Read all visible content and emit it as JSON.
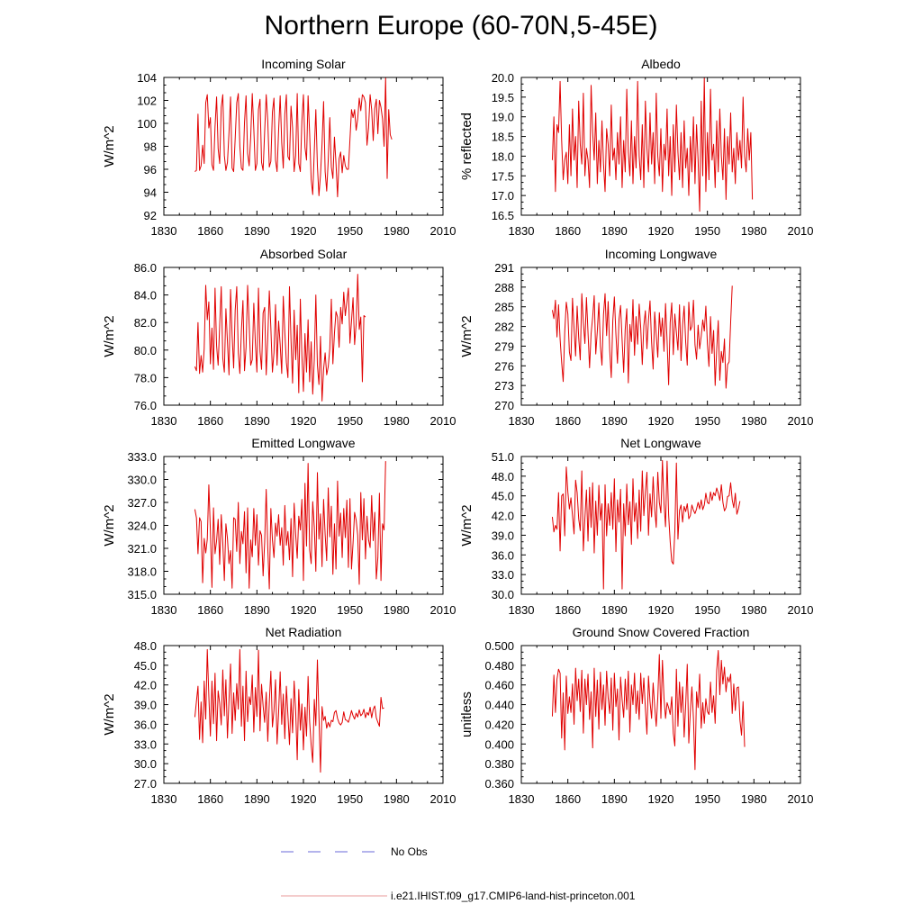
{
  "figure": {
    "title": "Northern Europe (60-70N,5-45E)"
  },
  "legend": {
    "entries": [
      {
        "label": "No Obs",
        "color": "#6a6ad8",
        "style": "dashed"
      },
      {
        "label": "i.e21.IHIST.f09_g17.CMIP6-land-hist-princeton.001",
        "color": "#e89a9a",
        "style": "solid"
      }
    ]
  },
  "colors": {
    "series": "#e00000",
    "axis": "#000000"
  },
  "chart_data": [
    {
      "type": "line",
      "title": "Incoming Solar",
      "ylabel": "W/m^2",
      "xlim": [
        1830,
        2010
      ],
      "xticks": [
        1830,
        1860,
        1890,
        1920,
        1950,
        1980,
        2010
      ],
      "ylim": [
        92,
        104
      ],
      "yticks": [
        "92",
        "94",
        "96",
        "98",
        "100",
        "102",
        "104"
      ],
      "x_start": 1850,
      "y": [
        95.8,
        95.9,
        100.8,
        95.9,
        96.3,
        98.1,
        96.5,
        101.8,
        102.5,
        99.6,
        100.5,
        96.4,
        95.9,
        99.7,
        102.3,
        97.8,
        96.5,
        101.4,
        102.5,
        97.2,
        95.9,
        96.6,
        99.2,
        102.3,
        96.1,
        95.8,
        98.7,
        101.8,
        102.6,
        98.0,
        96.1,
        95.9,
        100.1,
        102.4,
        97.4,
        96.3,
        98.8,
        102.6,
        99.5,
        95.9,
        96.5,
        101.2,
        102.1,
        96.6,
        95.9,
        99.3,
        102.5,
        100.2,
        96.2,
        96.7,
        101.0,
        102.2,
        96.8,
        95.8,
        99.4,
        102.4,
        98.3,
        96.1,
        100.8,
        102.5,
        97.1,
        96.8,
        101.5,
        99.6,
        95.8,
        97.2,
        102.6,
        96.5,
        95.8,
        100.2,
        102.5,
        97.9,
        96.8,
        102.4,
        99.1,
        95.1,
        93.8,
        97.6,
        101.2,
        96.3,
        93.7,
        95.5,
        98.2,
        101.9,
        95.8,
        94.1,
        96.8,
        100.5,
        96.2,
        95.2,
        98.8,
        96.5,
        93.6,
        96.9,
        97.5,
        95.7,
        97.2,
        96.3,
        96.0,
        96.0,
        98.6,
        101.2,
        100.5,
        101.2,
        99.4,
        100.4,
        102.2,
        101.1,
        102.5,
        102.3,
        101.8,
        98.1,
        99.6,
        102.5,
        101.2,
        98.5,
        101.3,
        102.1,
        99.1,
        102.0,
        101.4,
        100.4,
        98.0,
        104.0,
        95.2,
        101.2,
        99.0,
        98.6
      ]
    },
    {
      "type": "line",
      "title": "Albedo",
      "ylabel": "% reflected",
      "xlim": [
        1830,
        2010
      ],
      "xticks": [
        1830,
        1860,
        1890,
        1920,
        1950,
        1980,
        2010
      ],
      "ylim": [
        16.5,
        20.0
      ],
      "yticks": [
        "16.5",
        "17.0",
        "17.5",
        "18.0",
        "18.5",
        "19.0",
        "19.5",
        "20.0"
      ],
      "x_start": 1850,
      "y": [
        17.9,
        19.0,
        17.1,
        18.8,
        18.6,
        19.9,
        18.4,
        17.4,
        17.9,
        18.1,
        17.3,
        18.8,
        17.5,
        19.2,
        17.9,
        18.5,
        17.2,
        19.4,
        18.3,
        17.8,
        19.6,
        17.5,
        18.2,
        17.9,
        17.2,
        19.8,
        18.6,
        17.9,
        19.1,
        17.3,
        18.4,
        17.6,
        18.9,
        17.8,
        17.1,
        18.7,
        18.3,
        17.5,
        19.3,
        17.9,
        18.2,
        17.4,
        18.6,
        17.8,
        19.0,
        17.2,
        18.4,
        17.6,
        19.7,
        18.1,
        17.5,
        18.9,
        17.3,
        18.5,
        17.7,
        19.9,
        18.0,
        17.4,
        18.8,
        17.2,
        19.4,
        18.2,
        17.6,
        19.1,
        17.8,
        18.6,
        17.3,
        19.6,
        18.0,
        17.5,
        18.7,
        17.1,
        18.3,
        17.9,
        19.2,
        17.5,
        18.5,
        17.0,
        18.8,
        17.6,
        19.3,
        18.1,
        17.4,
        18.6,
        17.2,
        18.9,
        17.7,
        18.2,
        17.0,
        18.5,
        17.6,
        19.0,
        17.3,
        18.8,
        17.9,
        16.6,
        19.4,
        17.5,
        20.0,
        17.1,
        18.6,
        17.4,
        19.7,
        17.9,
        18.3,
        17.2,
        18.9,
        17.6,
        19.2,
        18.0,
        17.4,
        18.7,
        16.9,
        18.5,
        17.8,
        19.1,
        17.6,
        18.2,
        17.3,
        18.6,
        17.9,
        18.4,
        17.7,
        19.5,
        18.0,
        17.6,
        18.7,
        17.9,
        18.6,
        16.9
      ]
    },
    {
      "type": "line",
      "title": "Absorbed Solar",
      "ylabel": "W/m^2",
      "xlim": [
        1830,
        2010
      ],
      "xticks": [
        1830,
        1860,
        1890,
        1920,
        1950,
        1980,
        2010
      ],
      "ylim": [
        76.0,
        86.0
      ],
      "yticks": [
        "76.0",
        "78.0",
        "80.0",
        "82.0",
        "84.0",
        "86.0"
      ],
      "x_start": 1850,
      "y": [
        78.8,
        78.5,
        82.0,
        78.3,
        79.6,
        78.4,
        80.1,
        84.7,
        82.2,
        83.5,
        79.0,
        81.6,
        78.6,
        84.5,
        80.3,
        78.9,
        81.8,
        84.6,
        79.4,
        78.4,
        83.0,
        80.6,
        78.2,
        84.4,
        81.1,
        78.7,
        82.9,
        84.6,
        79.8,
        78.3,
        81.4,
        83.6,
        78.5,
        80.2,
        84.7,
        81.9,
        78.9,
        79.3,
        83.4,
        80.5,
        78.4,
        84.5,
        79.9,
        78.6,
        82.7,
        83.1,
        78.2,
        80.9,
        84.3,
        81.6,
        78.4,
        79.8,
        83.3,
        78.9,
        82.1,
        80.4,
        78.3,
        83.9,
        81.3,
        79.1,
        78.0,
        84.6,
        80.7,
        77.6,
        82.9,
        79.3,
        81.8,
        76.9,
        83.7,
        79.6,
        77.0,
        81.2,
        78.4,
        82.2,
        77.7,
        80.6,
        76.8,
        79.3,
        84.0,
        78.9,
        77.5,
        81.0,
        76.3,
        78.6,
        79.8,
        78.2,
        78.8,
        80.1,
        83.7,
        79.0,
        81.2,
        82.8,
        82.4,
        80.2,
        83.1,
        81.9,
        84.2,
        82.5,
        83.5,
        84.5,
        80.5,
        82.1,
        83.8,
        80.4,
        81.9,
        85.5,
        81.5,
        82.4,
        77.7,
        82.5,
        82.4
      ]
    },
    {
      "type": "line",
      "title": "Incoming Longwave",
      "ylabel": "W/m^2",
      "xlim": [
        1830,
        2010
      ],
      "xticks": [
        1830,
        1860,
        1890,
        1920,
        1950,
        1980,
        2010
      ],
      "ylim": [
        270,
        291
      ],
      "yticks": [
        "270",
        "273",
        "276",
        "279",
        "282",
        "285",
        "288",
        "291"
      ],
      "x_start": 1850,
      "y": [
        284.5,
        283.2,
        286.0,
        280.4,
        285.3,
        280.1,
        276.5,
        273.6,
        281.2,
        285.7,
        283.9,
        278.1,
        276.8,
        286.3,
        281.7,
        277.5,
        285.1,
        280.3,
        276.9,
        287.0,
        282.6,
        279.4,
        286.4,
        281.1,
        275.7,
        280.9,
        283.4,
        286.7,
        277.8,
        281.3,
        285.6,
        279.0,
        276.1,
        283.8,
        287.0,
        280.6,
        285.8,
        278.3,
        274.2,
        282.9,
        286.5,
        280.8,
        276.4,
        283.1,
        285.2,
        279.9,
        275.0,
        281.6,
        284.7,
        273.4,
        282.3,
        279.7,
        286.1,
        277.6,
        283.5,
        279.3,
        285.4,
        281.8,
        276.2,
        282.1,
        284.4,
        278.6,
        283.0,
        285.9,
        279.6,
        275.5,
        284.2,
        280.7,
        277.3,
        284.1,
        280.5,
        283.3,
        278.2,
        285.5,
        279.8,
        273.1,
        282.6,
        285.6,
        277.7,
        283.9,
        281.1,
        278.4,
        285.3,
        276.8,
        282.2,
        285.1,
        279.6,
        276.1,
        285.7,
        281.4,
        282.0,
        286.0,
        279.2,
        277.0,
        282.2,
        278.6,
        280.5,
        283.0,
        281.3,
        285.1,
        279.3,
        275.9,
        283.5,
        277.9,
        281.4,
        273.0,
        278.5,
        282.9,
        273.8,
        278.2,
        276.5,
        280.1,
        272.6,
        276.2,
        276.6,
        282.7,
        288.2
      ]
    },
    {
      "type": "line",
      "title": "Emitted Longwave",
      "ylabel": "W/m^2",
      "xlim": [
        1830,
        2010
      ],
      "xticks": [
        1830,
        1860,
        1890,
        1920,
        1950,
        1980,
        2010
      ],
      "ylim": [
        315.0,
        333.0
      ],
      "yticks": [
        "315.0",
        "318.0",
        "321.0",
        "324.0",
        "327.0",
        "330.0",
        "333.0"
      ],
      "x_start": 1850,
      "y": [
        326.1,
        325.0,
        320.3,
        325.0,
        324.5,
        316.5,
        322.3,
        320.4,
        322.2,
        329.3,
        323.3,
        315.9,
        326.3,
        320.3,
        322.0,
        324.8,
        318.9,
        325.4,
        321.7,
        316.8,
        324.2,
        322.3,
        319.0,
        320.7,
        315.8,
        325.0,
        324.8,
        320.6,
        327.0,
        319.0,
        323.2,
        321.6,
        325.8,
        317.8,
        326.3,
        315.8,
        322.1,
        319.9,
        326.2,
        321.4,
        325.4,
        318.8,
        323.3,
        322.7,
        317.4,
        321.8,
        328.7,
        321.1,
        315.7,
        326.2,
        322.1,
        319.8,
        324.3,
        322.6,
        325.4,
        321.4,
        323.7,
        318.8,
        326.6,
        321.4,
        323.2,
        319.5,
        324.9,
        317.3,
        326.9,
        322.8,
        319.7,
        325.2,
        323.4,
        327.4,
        316.8,
        329.5,
        321.3,
        332.1,
        320.8,
        319.0,
        327.1,
        323.8,
        318.0,
        330.9,
        322.2,
        325.5,
        318.6,
        327.4,
        322.8,
        319.4,
        328.9,
        322.5,
        326.5,
        317.6,
        324.2,
        318.3,
        329.8,
        322.6,
        325.6,
        319.8,
        326.2,
        322.4,
        327.3,
        318.5,
        327.5,
        318.3,
        321.7,
        325.7,
        324.7,
        322.7,
        316.3,
        328.3,
        322.1,
        327.5,
        319.6,
        325.2,
        322.1,
        321.1,
        327.9,
        322.0,
        325.7,
        317.0,
        319.8,
        328.2,
        316.8,
        324.2,
        323.4,
        332.4
      ]
    },
    {
      "type": "line",
      "title": "Net Longwave",
      "ylabel": "W/m^2",
      "xlim": [
        1830,
        2010
      ],
      "xticks": [
        1830,
        1860,
        1890,
        1920,
        1950,
        1980,
        2010
      ],
      "ylim": [
        30.0,
        51.0
      ],
      "yticks": [
        "30.0",
        "33.0",
        "36.0",
        "39.0",
        "42.0",
        "45.0",
        "48.0",
        "51.0"
      ],
      "x_start": 1850,
      "y": [
        41.8,
        39.5,
        40.5,
        39.9,
        45.5,
        36.6,
        45.0,
        45.3,
        38.9,
        49.4,
        45.6,
        43.0,
        44.7,
        42.0,
        39.2,
        47.4,
        45.5,
        41.5,
        39.7,
        48.8,
        36.6,
        41.6,
        45.9,
        38.1,
        46.3,
        40.2,
        47.0,
        36.3,
        44.2,
        39.0,
        46.6,
        41.3,
        43.8,
        30.8,
        46.7,
        38.9,
        43.8,
        40.5,
        45.5,
        39.9,
        47.6,
        36.5,
        44.4,
        41.0,
        46.0,
        30.8,
        43.8,
        38.9,
        46.8,
        40.6,
        44.1,
        37.6,
        47.6,
        41.1,
        43.9,
        38.5,
        45.9,
        39.6,
        48.8,
        42.0,
        45.6,
        48.6,
        39.0,
        45.3,
        41.8,
        47.9,
        43.0,
        40.2,
        48.6,
        44.0,
        42.4,
        50.4,
        43.9,
        40.3,
        50.3,
        42.1,
        38.0,
        35.0,
        34.6,
        39.6,
        50.0,
        38.4,
        42.8,
        43.6,
        41.0,
        43.4,
        42.6,
        43.8,
        41.5,
        42.0,
        43.6,
        42.8,
        42.3,
        43.0,
        44.0,
        43.0,
        44.4,
        42.9,
        43.6,
        45.4,
        44.0,
        43.8,
        45.6,
        44.3,
        45.5,
        45.0,
        46.2,
        45.4,
        44.3,
        46.7,
        44.0,
        42.7,
        43.2,
        44.9,
        45.0,
        47.0,
        44.4,
        43.2,
        45.4,
        42.2,
        43.0,
        44.2
      ]
    },
    {
      "type": "line",
      "title": "Net Radiation",
      "ylabel": "W/m^2",
      "xlim": [
        1830,
        2010
      ],
      "xticks": [
        1830,
        1860,
        1890,
        1920,
        1950,
        1980,
        2010
      ],
      "ylim": [
        27.0,
        48.0
      ],
      "yticks": [
        "27.0",
        "30.0",
        "33.0",
        "36.0",
        "39.0",
        "42.0",
        "45.0",
        "48.0"
      ],
      "x_start": 1850,
      "y": [
        37.1,
        39.5,
        41.8,
        33.7,
        39.4,
        33.2,
        42.6,
        36.8,
        47.4,
        40.3,
        34.2,
        42.6,
        36.1,
        43.8,
        33.5,
        41.1,
        39.2,
        35.9,
        44.3,
        37.3,
        42.8,
        33.9,
        39.7,
        45.2,
        34.6,
        40.8,
        36.6,
        42.2,
        38.3,
        47.4,
        35.7,
        41.8,
        33.5,
        44.1,
        36.4,
        40.2,
        39.0,
        43.5,
        34.8,
        41.6,
        37.2,
        47.3,
        35.0,
        42.1,
        38.8,
        36.3,
        40.9,
        33.4,
        39.4,
        44.1,
        35.6,
        38.1,
        42.8,
        33.0,
        37.8,
        44.0,
        36.0,
        40.6,
        33.8,
        41.8,
        37.4,
        32.9,
        39.9,
        34.7,
        42.6,
        38.0,
        30.6,
        41.3,
        35.1,
        39.1,
        32.1,
        38.6,
        34.2,
        43.3,
        36.4,
        32.8,
        30.2,
        39.8,
        35.8,
        45.8,
        37.4,
        28.7,
        38.7,
        36.6,
        37.2,
        35.4,
        36.3,
        35.6,
        36.6,
        36.4,
        37.8,
        38.1,
        36.9,
        36.2,
        35.9,
        36.3,
        37.9,
        36.7,
        36.6,
        36.3,
        37.1,
        38.1,
        37.3,
        36.8,
        37.7,
        37.1,
        38.2,
        37.3,
        37.6,
        38.3,
        37.0,
        37.8,
        37.4,
        38.6,
        37.0,
        38.3,
        38.8,
        37.0,
        36.3,
        35.7,
        40.1,
        38.4,
        38.5
      ]
    },
    {
      "type": "line",
      "title": "Ground Snow Covered Fraction",
      "ylabel": "unitless",
      "xlim": [
        1830,
        2010
      ],
      "xticks": [
        1830,
        1860,
        1890,
        1920,
        1950,
        1980,
        2010
      ],
      "ylim": [
        0.36,
        0.5
      ],
      "yticks": [
        "0.360",
        "0.380",
        "0.400",
        "0.420",
        "0.440",
        "0.460",
        "0.480",
        "0.500"
      ],
      "x_start": 1850,
      "y": [
        0.428,
        0.47,
        0.432,
        0.466,
        0.476,
        0.472,
        0.406,
        0.452,
        0.394,
        0.469,
        0.431,
        0.448,
        0.432,
        0.461,
        0.42,
        0.477,
        0.444,
        0.466,
        0.433,
        0.475,
        0.411,
        0.466,
        0.44,
        0.471,
        0.425,
        0.453,
        0.396,
        0.477,
        0.428,
        0.465,
        0.415,
        0.473,
        0.435,
        0.46,
        0.419,
        0.474,
        0.447,
        0.431,
        0.467,
        0.414,
        0.472,
        0.438,
        0.456,
        0.404,
        0.468,
        0.445,
        0.427,
        0.466,
        0.435,
        0.474,
        0.412,
        0.46,
        0.44,
        0.472,
        0.431,
        0.454,
        0.425,
        0.472,
        0.441,
        0.467,
        0.436,
        0.41,
        0.469,
        0.443,
        0.426,
        0.462,
        0.438,
        0.418,
        0.447,
        0.491,
        0.426,
        0.485,
        0.447,
        0.426,
        0.442,
        0.437,
        0.43,
        0.448,
        0.411,
        0.398,
        0.476,
        0.418,
        0.463,
        0.432,
        0.458,
        0.407,
        0.44,
        0.481,
        0.401,
        0.433,
        0.458,
        0.426,
        0.374,
        0.453,
        0.437,
        0.471,
        0.416,
        0.442,
        0.421,
        0.446,
        0.433,
        0.43,
        0.463,
        0.432,
        0.449,
        0.421,
        0.475,
        0.495,
        0.45,
        0.485,
        0.461,
        0.478,
        0.453,
        0.468,
        0.463,
        0.471,
        0.431,
        0.461,
        0.434,
        0.457,
        0.458,
        0.424,
        0.409,
        0.443,
        0.397
      ]
    }
  ]
}
